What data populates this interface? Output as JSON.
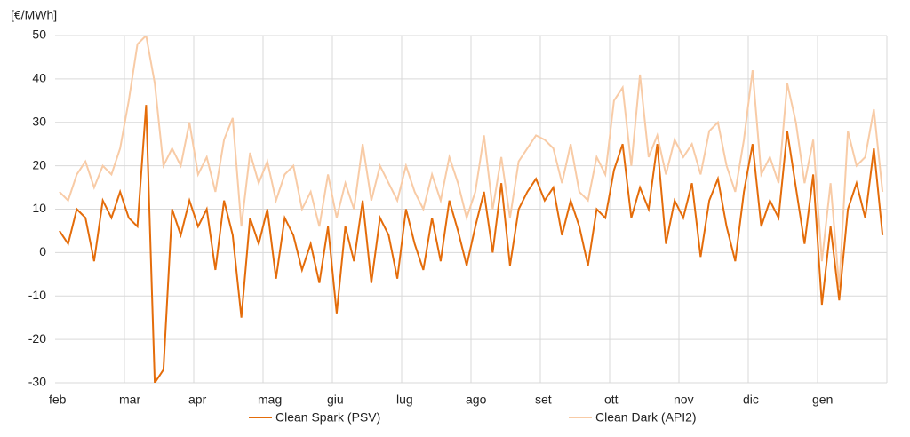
{
  "chart_data": {
    "type": "line",
    "y_label": "[€/MWh]",
    "categories": [
      "feb",
      null,
      null,
      null,
      null,
      null,
      null,
      null,
      "mar",
      null,
      null,
      null,
      null,
      null,
      null,
      null,
      "apr",
      null,
      null,
      null,
      null,
      null,
      null,
      null,
      "mag",
      null,
      null,
      null,
      null,
      null,
      null,
      null,
      "giu",
      null,
      null,
      null,
      null,
      null,
      null,
      null,
      "lug",
      null,
      null,
      null,
      null,
      null,
      null,
      null,
      "ago",
      null,
      null,
      null,
      null,
      null,
      null,
      null,
      "set",
      null,
      null,
      null,
      null,
      null,
      null,
      null,
      "ott",
      null,
      null,
      null,
      null,
      null,
      null,
      null,
      "nov",
      null,
      null,
      null,
      null,
      null,
      null,
      null,
      "dic",
      null,
      null,
      null,
      null,
      null,
      null,
      null,
      "gen",
      null,
      null,
      null,
      null,
      null,
      null,
      null
    ],
    "series": [
      {
        "name": "Clean Spark (PSV)",
        "color": "#e46c0a",
        "values": [
          5,
          2,
          10,
          8,
          -2,
          12,
          8,
          14,
          8,
          6,
          34,
          -30,
          -27,
          10,
          4,
          12,
          6,
          10,
          -4,
          12,
          4,
          -15,
          8,
          2,
          10,
          -6,
          8,
          4,
          -4,
          2,
          -7,
          6,
          -14,
          6,
          -2,
          12,
          -7,
          8,
          4,
          -6,
          10,
          2,
          -4,
          8,
          -2,
          12,
          5,
          -3,
          6,
          14,
          0,
          16,
          -3,
          10,
          14,
          17,
          12,
          15,
          4,
          12,
          6,
          -3,
          10,
          8,
          19,
          25,
          8,
          15,
          10,
          25,
          2,
          12,
          8,
          16,
          -1,
          12,
          17,
          6,
          -2,
          14,
          25,
          6,
          12,
          8,
          28,
          15,
          2,
          18,
          -12,
          6,
          -11,
          10,
          16,
          8,
          24,
          4
        ]
      },
      {
        "name": "Clean Dark (API2)",
        "color": "#f8cba6",
        "values": [
          14,
          12,
          18,
          21,
          15,
          20,
          18,
          24,
          35,
          48,
          50,
          39,
          20,
          24,
          20,
          30,
          18,
          22,
          14,
          26,
          31,
          6,
          23,
          16,
          21,
          12,
          18,
          20,
          10,
          14,
          6,
          18,
          8,
          16,
          10,
          25,
          12,
          20,
          16,
          12,
          20,
          14,
          10,
          18,
          12,
          22,
          16,
          8,
          14,
          27,
          10,
          22,
          8,
          21,
          24,
          27,
          26,
          24,
          16,
          25,
          14,
          12,
          22,
          18,
          35,
          38,
          20,
          41,
          22,
          27,
          18,
          26,
          22,
          25,
          18,
          28,
          30,
          20,
          14,
          26,
          42,
          18,
          22,
          16,
          39,
          30,
          16,
          26,
          -2,
          16,
          -8,
          28,
          20,
          22,
          33,
          14
        ]
      }
    ],
    "ylim": [
      -30,
      50
    ],
    "yticks": [
      -30,
      -20,
      -10,
      0,
      10,
      20,
      30,
      40,
      50
    ],
    "grid": true
  }
}
